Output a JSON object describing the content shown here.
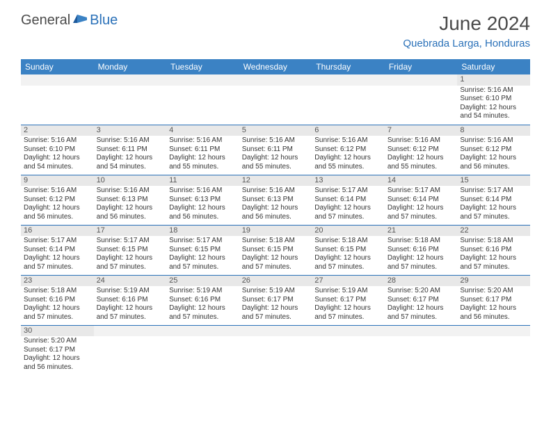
{
  "logo": {
    "text1": "General",
    "text2": "Blue"
  },
  "title": "June 2024",
  "location": "Quebrada Larga, Honduras",
  "colors": {
    "header_bg": "#3b82c4",
    "accent": "#2970b8",
    "text_dark": "#4a4a4a",
    "cell_header_bg": "#e8e8e8",
    "empty_bg": "#f2f2f2",
    "border": "#2970b8"
  },
  "days": [
    "Sunday",
    "Monday",
    "Tuesday",
    "Wednesday",
    "Thursday",
    "Friday",
    "Saturday"
  ],
  "weeks": [
    [
      null,
      null,
      null,
      null,
      null,
      null,
      {
        "n": "1",
        "sr": "5:16 AM",
        "ss": "6:10 PM",
        "dl": "12 hours and 54 minutes."
      }
    ],
    [
      {
        "n": "2",
        "sr": "5:16 AM",
        "ss": "6:10 PM",
        "dl": "12 hours and 54 minutes."
      },
      {
        "n": "3",
        "sr": "5:16 AM",
        "ss": "6:11 PM",
        "dl": "12 hours and 54 minutes."
      },
      {
        "n": "4",
        "sr": "5:16 AM",
        "ss": "6:11 PM",
        "dl": "12 hours and 55 minutes."
      },
      {
        "n": "5",
        "sr": "5:16 AM",
        "ss": "6:11 PM",
        "dl": "12 hours and 55 minutes."
      },
      {
        "n": "6",
        "sr": "5:16 AM",
        "ss": "6:12 PM",
        "dl": "12 hours and 55 minutes."
      },
      {
        "n": "7",
        "sr": "5:16 AM",
        "ss": "6:12 PM",
        "dl": "12 hours and 55 minutes."
      },
      {
        "n": "8",
        "sr": "5:16 AM",
        "ss": "6:12 PM",
        "dl": "12 hours and 56 minutes."
      }
    ],
    [
      {
        "n": "9",
        "sr": "5:16 AM",
        "ss": "6:12 PM",
        "dl": "12 hours and 56 minutes."
      },
      {
        "n": "10",
        "sr": "5:16 AM",
        "ss": "6:13 PM",
        "dl": "12 hours and 56 minutes."
      },
      {
        "n": "11",
        "sr": "5:16 AM",
        "ss": "6:13 PM",
        "dl": "12 hours and 56 minutes."
      },
      {
        "n": "12",
        "sr": "5:16 AM",
        "ss": "6:13 PM",
        "dl": "12 hours and 56 minutes."
      },
      {
        "n": "13",
        "sr": "5:17 AM",
        "ss": "6:14 PM",
        "dl": "12 hours and 57 minutes."
      },
      {
        "n": "14",
        "sr": "5:17 AM",
        "ss": "6:14 PM",
        "dl": "12 hours and 57 minutes."
      },
      {
        "n": "15",
        "sr": "5:17 AM",
        "ss": "6:14 PM",
        "dl": "12 hours and 57 minutes."
      }
    ],
    [
      {
        "n": "16",
        "sr": "5:17 AM",
        "ss": "6:14 PM",
        "dl": "12 hours and 57 minutes."
      },
      {
        "n": "17",
        "sr": "5:17 AM",
        "ss": "6:15 PM",
        "dl": "12 hours and 57 minutes."
      },
      {
        "n": "18",
        "sr": "5:17 AM",
        "ss": "6:15 PM",
        "dl": "12 hours and 57 minutes."
      },
      {
        "n": "19",
        "sr": "5:18 AM",
        "ss": "6:15 PM",
        "dl": "12 hours and 57 minutes."
      },
      {
        "n": "20",
        "sr": "5:18 AM",
        "ss": "6:15 PM",
        "dl": "12 hours and 57 minutes."
      },
      {
        "n": "21",
        "sr": "5:18 AM",
        "ss": "6:16 PM",
        "dl": "12 hours and 57 minutes."
      },
      {
        "n": "22",
        "sr": "5:18 AM",
        "ss": "6:16 PM",
        "dl": "12 hours and 57 minutes."
      }
    ],
    [
      {
        "n": "23",
        "sr": "5:18 AM",
        "ss": "6:16 PM",
        "dl": "12 hours and 57 minutes."
      },
      {
        "n": "24",
        "sr": "5:19 AM",
        "ss": "6:16 PM",
        "dl": "12 hours and 57 minutes."
      },
      {
        "n": "25",
        "sr": "5:19 AM",
        "ss": "6:16 PM",
        "dl": "12 hours and 57 minutes."
      },
      {
        "n": "26",
        "sr": "5:19 AM",
        "ss": "6:17 PM",
        "dl": "12 hours and 57 minutes."
      },
      {
        "n": "27",
        "sr": "5:19 AM",
        "ss": "6:17 PM",
        "dl": "12 hours and 57 minutes."
      },
      {
        "n": "28",
        "sr": "5:20 AM",
        "ss": "6:17 PM",
        "dl": "12 hours and 57 minutes."
      },
      {
        "n": "29",
        "sr": "5:20 AM",
        "ss": "6:17 PM",
        "dl": "12 hours and 56 minutes."
      }
    ],
    [
      {
        "n": "30",
        "sr": "5:20 AM",
        "ss": "6:17 PM",
        "dl": "12 hours and 56 minutes."
      },
      null,
      null,
      null,
      null,
      null,
      null
    ]
  ],
  "labels": {
    "sunrise": "Sunrise:",
    "sunset": "Sunset:",
    "daylight": "Daylight:"
  }
}
